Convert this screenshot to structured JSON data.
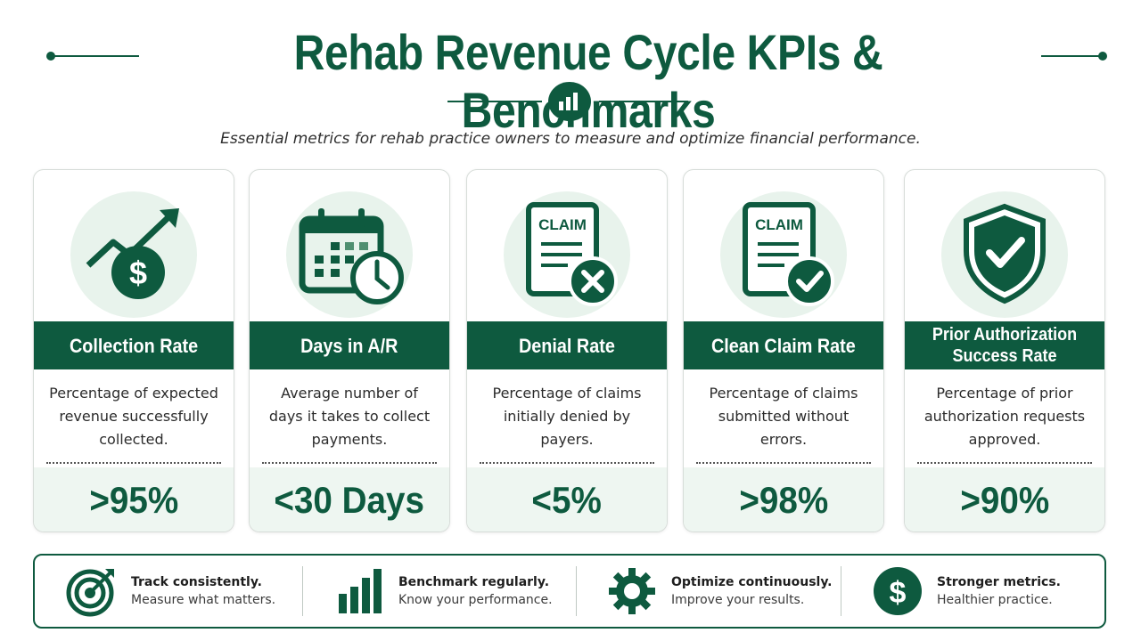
{
  "header": {
    "title": "Rehab Revenue Cycle KPIs & Benchmarks",
    "subtitle": "Essential metrics for rehab practice owners to measure and optimize financial performance."
  },
  "colors": {
    "primary": "#0e5a3f",
    "mint": "#e8f3ec",
    "value_bg": "#eef6f1"
  },
  "cards": [
    {
      "title": "Collection Rate",
      "icon": "trending-up-dollar-icon",
      "description": "Percentage of expected revenue successfully collected.",
      "value": ">95%"
    },
    {
      "title": "Days in A/R",
      "icon": "calendar-clock-icon",
      "description": "Average number of days it takes to collect payments.",
      "value": "<30 Days"
    },
    {
      "title": "Denial Rate",
      "icon": "claim-denied-icon",
      "icon_label": "CLAIM",
      "description": "Percentage of claims initially denied by payers.",
      "value": "<5%"
    },
    {
      "title": "Clean Claim Rate",
      "icon": "claim-approved-icon",
      "icon_label": "CLAIM",
      "description": "Percentage of claims submitted without errors.",
      "value": ">98%"
    },
    {
      "title": "Prior Authorization Success Rate",
      "icon": "shield-check-icon",
      "description": "Percentage of prior authorization requests approved.",
      "value": ">90%"
    }
  ],
  "footer": [
    {
      "heading": "Track consistently.",
      "sub": "Measure what matters.",
      "icon": "target-icon"
    },
    {
      "heading": "Benchmark regularly.",
      "sub": "Know your performance.",
      "icon": "bar-chart-icon"
    },
    {
      "heading": "Optimize continuously.",
      "sub": "Improve your results.",
      "icon": "gear-icon"
    },
    {
      "heading": "Stronger metrics.",
      "sub": "Healthier practice.",
      "icon": "dollar-icon"
    }
  ]
}
